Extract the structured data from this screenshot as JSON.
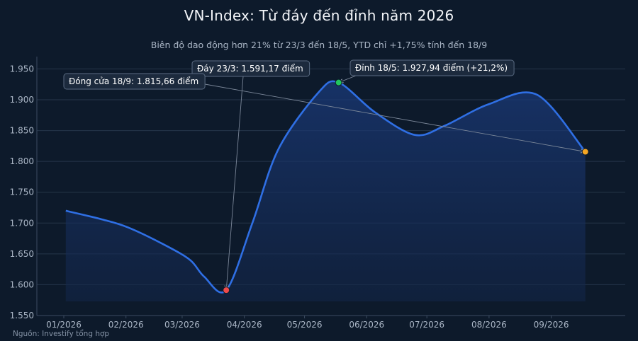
{
  "chart_data": {
    "type": "area",
    "title": "VN-Index: Từ đáy đến đỉnh năm 2026",
    "subtitle": "Biên độ dao động hơn 21% từ 23/3 đến 18/5, YTD chỉ +1,75% tính đến 18/9",
    "source": "Nguồn: Investify tổng hợp",
    "xlabel": "",
    "ylabel": "",
    "ylim": [
      1550,
      1970
    ],
    "grid": true,
    "x_ticks": [
      "01/2026",
      "02/2026",
      "03/2026",
      "04/2026",
      "05/2026",
      "06/2026",
      "07/2026",
      "08/2026",
      "09/2026"
    ],
    "y_ticks": [
      1550,
      1600,
      1650,
      1700,
      1750,
      1800,
      1850,
      1900,
      1950
    ],
    "y_tick_labels": [
      "1.550",
      "1.600",
      "1.650",
      "1.700",
      "1.750",
      "1.800",
      "1.850",
      "1.900",
      "1.950"
    ],
    "series": [
      {
        "color": "#2f6fe4",
        "points": [
          {
            "date": "2026-01-02",
            "value": 1720
          },
          {
            "date": "2026-01-20",
            "value": 1706
          },
          {
            "date": "2026-02-02",
            "value": 1693
          },
          {
            "date": "2026-02-20",
            "value": 1665
          },
          {
            "date": "2026-03-05",
            "value": 1640
          },
          {
            "date": "2026-03-12",
            "value": 1613
          },
          {
            "date": "2026-03-23",
            "value": 1591.17
          },
          {
            "date": "2026-04-05",
            "value": 1700
          },
          {
            "date": "2026-04-18",
            "value": 1820
          },
          {
            "date": "2026-05-08",
            "value": 1912
          },
          {
            "date": "2026-05-18",
            "value": 1927.94
          },
          {
            "date": "2026-06-05",
            "value": 1880
          },
          {
            "date": "2026-06-25",
            "value": 1843
          },
          {
            "date": "2026-07-10",
            "value": 1858
          },
          {
            "date": "2026-08-01",
            "value": 1893
          },
          {
            "date": "2026-08-25",
            "value": 1908
          },
          {
            "date": "2026-09-18",
            "value": 1815.66
          }
        ]
      }
    ],
    "highlights": [
      {
        "date": "2026-03-23",
        "value": 1591.17,
        "color": "#ef4a4a"
      },
      {
        "date": "2026-05-18",
        "value": 1927.94,
        "color": "#22c55e"
      },
      {
        "date": "2026-09-18",
        "value": 1815.66,
        "color": "#f5a623"
      }
    ],
    "annotations": [
      {
        "label": "Đáy 23/3: 1.591,17 điểm",
        "date": "2026-03-23",
        "value": 1591.17
      },
      {
        "label": "Đỉnh 18/5: 1.927,94 điểm (+21,2%)",
        "date": "2026-05-18",
        "value": 1927.94
      },
      {
        "label": "Đóng cửa 18/9: 1.815,66 điểm",
        "date": "2026-09-18",
        "value": 1815.66
      }
    ]
  }
}
